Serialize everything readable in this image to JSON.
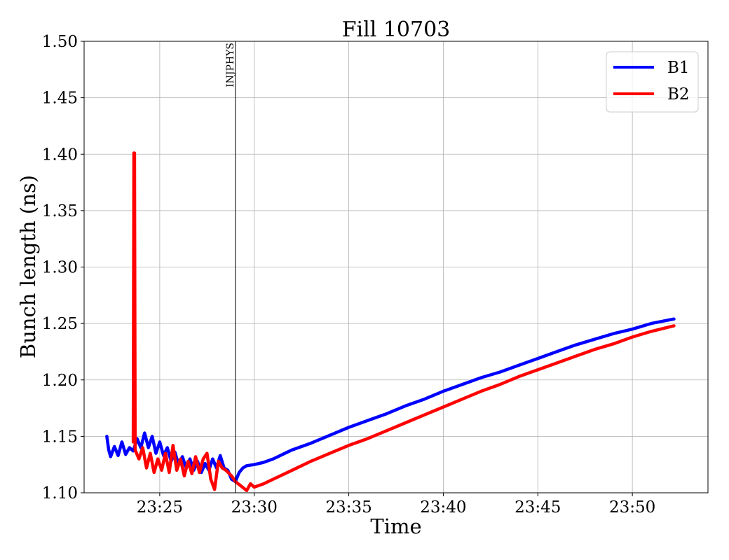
{
  "chart_data": {
    "type": "line",
    "title": "Fill 10703",
    "xlabel": "Time",
    "ylabel": "Bunch length (ns)",
    "x_unit": "time (HH:MM)",
    "xlim": [
      "23:21:00",
      "23:54:00"
    ],
    "ylim": [
      1.1,
      1.5
    ],
    "x_ticks": [
      "23:25",
      "23:30",
      "23:35",
      "23:40",
      "23:45",
      "23:50"
    ],
    "y_ticks": [
      "1.10",
      "1.15",
      "1.20",
      "1.25",
      "1.30",
      "1.35",
      "1.40",
      "1.45",
      "1.50"
    ],
    "grid": true,
    "legend": {
      "placement": "top-right",
      "entries": [
        "B1",
        "B2"
      ]
    },
    "annotations": [
      {
        "type": "vertical-line",
        "x": "23:29:00",
        "label": "INJPHYS"
      }
    ],
    "series": [
      {
        "name": "B1",
        "color": "#0000ff",
        "points": [
          [
            "23:22:12",
            1.15
          ],
          [
            "23:22:18",
            1.138
          ],
          [
            "23:22:24",
            1.132
          ],
          [
            "23:22:36",
            1.141
          ],
          [
            "23:22:48",
            1.133
          ],
          [
            "23:23:00",
            1.145
          ],
          [
            "23:23:12",
            1.134
          ],
          [
            "23:23:24",
            1.14
          ],
          [
            "23:23:36",
            1.137
          ],
          [
            "23:23:48",
            1.148
          ],
          [
            "23:24:00",
            1.14
          ],
          [
            "23:24:12",
            1.153
          ],
          [
            "23:24:24",
            1.14
          ],
          [
            "23:24:36",
            1.15
          ],
          [
            "23:24:48",
            1.135
          ],
          [
            "23:25:00",
            1.145
          ],
          [
            "23:25:12",
            1.133
          ],
          [
            "23:25:24",
            1.14
          ],
          [
            "23:25:36",
            1.128
          ],
          [
            "23:25:48",
            1.136
          ],
          [
            "23:26:00",
            1.125
          ],
          [
            "23:26:12",
            1.132
          ],
          [
            "23:26:24",
            1.122
          ],
          [
            "23:26:36",
            1.13
          ],
          [
            "23:26:48",
            1.12
          ],
          [
            "23:27:00",
            1.128
          ],
          [
            "23:27:12",
            1.118
          ],
          [
            "23:27:24",
            1.126
          ],
          [
            "23:27:36",
            1.12
          ],
          [
            "23:27:48",
            1.13
          ],
          [
            "23:28:00",
            1.122
          ],
          [
            "23:28:12",
            1.133
          ],
          [
            "23:28:24",
            1.122
          ],
          [
            "23:28:36",
            1.12
          ],
          [
            "23:28:48",
            1.112
          ],
          [
            "23:29:00",
            1.11
          ],
          [
            "23:29:12",
            1.118
          ],
          [
            "23:29:24",
            1.122
          ],
          [
            "23:29:36",
            1.124
          ],
          [
            "23:30:00",
            1.125
          ],
          [
            "23:30:30",
            1.127
          ],
          [
            "23:31:00",
            1.13
          ],
          [
            "23:32:00",
            1.138
          ],
          [
            "23:33:00",
            1.144
          ],
          [
            "23:34:00",
            1.151
          ],
          [
            "23:35:00",
            1.158
          ],
          [
            "23:36:00",
            1.164
          ],
          [
            "23:37:00",
            1.17
          ],
          [
            "23:38:00",
            1.177
          ],
          [
            "23:39:00",
            1.183
          ],
          [
            "23:40:00",
            1.19
          ],
          [
            "23:41:00",
            1.196
          ],
          [
            "23:42:00",
            1.202
          ],
          [
            "23:43:00",
            1.207
          ],
          [
            "23:44:00",
            1.213
          ],
          [
            "23:45:00",
            1.219
          ],
          [
            "23:46:00",
            1.225
          ],
          [
            "23:47:00",
            1.231
          ],
          [
            "23:48:00",
            1.236
          ],
          [
            "23:49:00",
            1.241
          ],
          [
            "23:50:00",
            1.245
          ],
          [
            "23:51:00",
            1.25
          ],
          [
            "23:52:12",
            1.254
          ]
        ]
      },
      {
        "name": "B2",
        "color": "#ff0000",
        "points": [
          [
            "23:23:36",
            1.145
          ],
          [
            "23:23:38",
            1.401
          ],
          [
            "23:23:40",
            1.401
          ],
          [
            "23:23:42",
            1.138
          ],
          [
            "23:23:54",
            1.13
          ],
          [
            "23:24:06",
            1.14
          ],
          [
            "23:24:18",
            1.122
          ],
          [
            "23:24:30",
            1.135
          ],
          [
            "23:24:42",
            1.118
          ],
          [
            "23:24:54",
            1.13
          ],
          [
            "23:25:06",
            1.12
          ],
          [
            "23:25:18",
            1.135
          ],
          [
            "23:25:30",
            1.118
          ],
          [
            "23:25:42",
            1.142
          ],
          [
            "23:25:54",
            1.12
          ],
          [
            "23:26:06",
            1.13
          ],
          [
            "23:26:18",
            1.115
          ],
          [
            "23:26:30",
            1.128
          ],
          [
            "23:26:42",
            1.117
          ],
          [
            "23:26:54",
            1.132
          ],
          [
            "23:27:06",
            1.118
          ],
          [
            "23:27:18",
            1.13
          ],
          [
            "23:27:30",
            1.135
          ],
          [
            "23:27:42",
            1.112
          ],
          [
            "23:27:54",
            1.103
          ],
          [
            "23:28:06",
            1.128
          ],
          [
            "23:28:18",
            1.122
          ],
          [
            "23:28:30",
            1.12
          ],
          [
            "23:28:48",
            1.115
          ],
          [
            "23:29:00",
            1.11
          ],
          [
            "23:29:18",
            1.106
          ],
          [
            "23:29:36",
            1.102
          ],
          [
            "23:29:48",
            1.108
          ],
          [
            "23:30:00",
            1.105
          ],
          [
            "23:30:30",
            1.108
          ],
          [
            "23:31:00",
            1.112
          ],
          [
            "23:32:00",
            1.12
          ],
          [
            "23:33:00",
            1.128
          ],
          [
            "23:34:00",
            1.135
          ],
          [
            "23:35:00",
            1.142
          ],
          [
            "23:36:00",
            1.148
          ],
          [
            "23:37:00",
            1.155
          ],
          [
            "23:38:00",
            1.162
          ],
          [
            "23:39:00",
            1.169
          ],
          [
            "23:40:00",
            1.176
          ],
          [
            "23:41:00",
            1.183
          ],
          [
            "23:42:00",
            1.19
          ],
          [
            "23:43:00",
            1.196
          ],
          [
            "23:44:00",
            1.203
          ],
          [
            "23:45:00",
            1.209
          ],
          [
            "23:46:00",
            1.215
          ],
          [
            "23:47:00",
            1.221
          ],
          [
            "23:48:00",
            1.227
          ],
          [
            "23:49:00",
            1.232
          ],
          [
            "23:50:00",
            1.238
          ],
          [
            "23:51:00",
            1.243
          ],
          [
            "23:52:12",
            1.248
          ]
        ]
      }
    ]
  }
}
